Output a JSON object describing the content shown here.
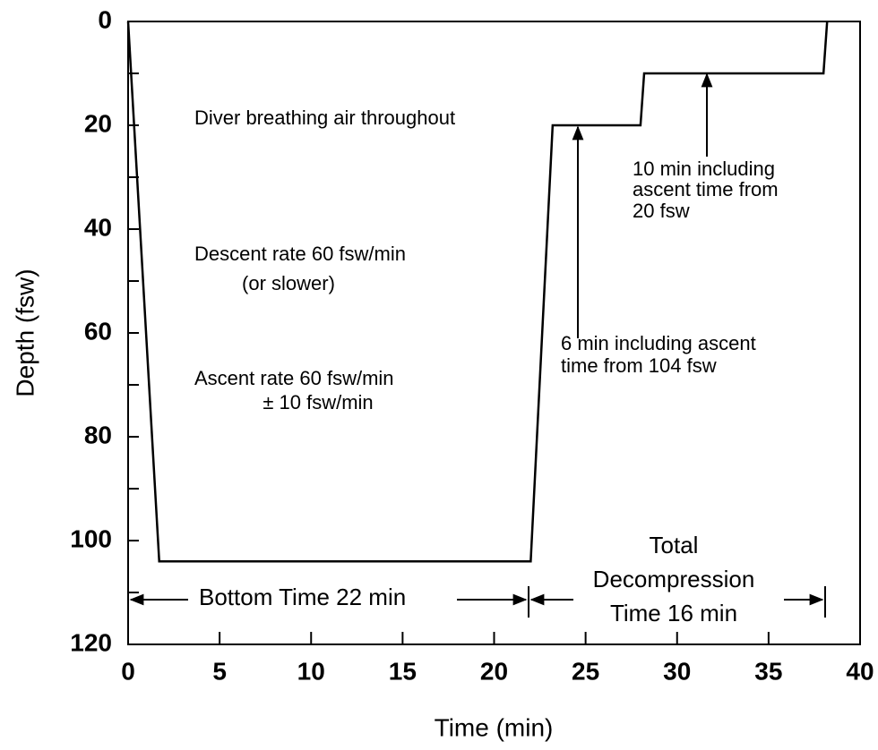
{
  "chart_data": {
    "type": "line",
    "xlabel": "Time (min)",
    "ylabel": "Depth (fsw)",
    "series": [
      {
        "color": "#000000",
        "x": [
          0,
          1.7,
          22,
          23.2,
          28,
          28.2,
          38,
          38.2
        ],
        "values": [
          0,
          104,
          104,
          20,
          20,
          10,
          10,
          0
        ]
      }
    ],
    "xlim": [
      0,
      40
    ],
    "xticks": [
      0,
      5,
      10,
      15,
      20,
      25,
      30,
      35,
      40
    ],
    "ylim": [
      0,
      120
    ],
    "yticks": [
      0,
      20,
      40,
      60,
      80,
      100,
      120
    ],
    "yticks_minor": [
      10,
      30,
      50,
      70,
      90,
      110
    ],
    "y_inverted": true,
    "annotations": [
      {
        "lines": [
          "Diver breathing air throughout"
        ]
      },
      {
        "lines": [
          "Descent rate 60 fsw/min",
          "(or slower)"
        ]
      },
      {
        "lines": [
          "Ascent rate 60 fsw/min",
          "± 10 fsw/min"
        ]
      },
      {
        "lines": [
          "10 min including",
          "ascent time from",
          "20 fsw"
        ]
      },
      {
        "lines": [
          "6 min including ascent",
          "time from 104 fsw"
        ]
      },
      {
        "lines": [
          "Bottom Time 22 min"
        ]
      },
      {
        "lines": [
          "Total",
          "Decompression",
          "Time 16 min"
        ]
      }
    ]
  }
}
